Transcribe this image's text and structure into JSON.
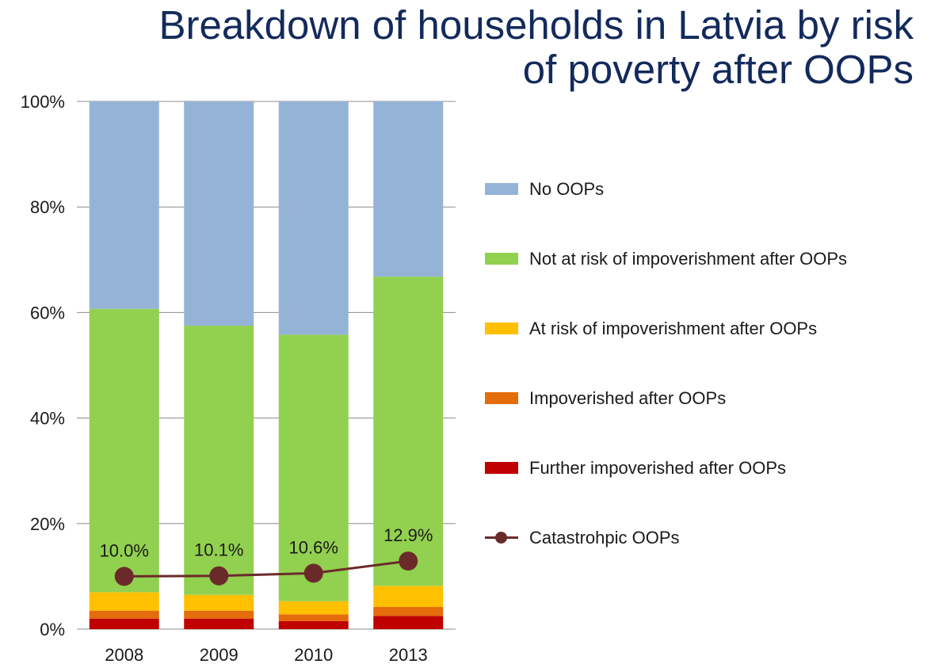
{
  "chart_data": {
    "type": "bar",
    "stacked": true,
    "title": "Breakdown of households in Latvia by risk of poverty after OOPs",
    "title_lines": [
      "Breakdown of households in Latvia by risk",
      "of poverty after OOPs"
    ],
    "categories": [
      "2008",
      "2009",
      "2010",
      "2013"
    ],
    "ylim": [
      0,
      100
    ],
    "yticks": [
      0,
      20,
      40,
      60,
      80,
      100
    ],
    "ytick_labels": [
      "0%",
      "20%",
      "40%",
      "60%",
      "80%",
      "100%"
    ],
    "grid": true,
    "legend_position": "right",
    "series": [
      {
        "name": "Further impoverished after OOPs",
        "color": "#c00000",
        "values": [
          2.0,
          2.0,
          1.5,
          2.5
        ]
      },
      {
        "name": "Impoverished after OOPs",
        "color": "#e46c0a",
        "values": [
          1.5,
          1.5,
          1.3,
          1.7
        ]
      },
      {
        "name": "At risk of impoverishment after OOPs",
        "color": "#ffc000",
        "values": [
          3.5,
          3.0,
          2.5,
          4.0
        ]
      },
      {
        "name": "Not at risk of impoverishment after OOPs",
        "color": "#92d050",
        "values": [
          53.7,
          51.0,
          50.5,
          58.6
        ]
      },
      {
        "name": "No OOPs",
        "color": "#95b3d7",
        "values": [
          39.3,
          42.5,
          44.2,
          33.2
        ]
      }
    ],
    "line_series": {
      "name": "Catastrohpic OOPs",
      "color": "#6b2a2a",
      "values": [
        10.0,
        10.1,
        10.6,
        12.9
      ],
      "labels": [
        "10.0%",
        "10.1%",
        "10.6%",
        "12.9%"
      ]
    },
    "legend_order": [
      "No OOPs",
      "Not at risk of impoverishment after OOPs",
      "At risk of impoverishment after OOPs",
      "Impoverished after OOPs",
      "Further impoverished after OOPs",
      "Catastrohpic OOPs"
    ]
  }
}
